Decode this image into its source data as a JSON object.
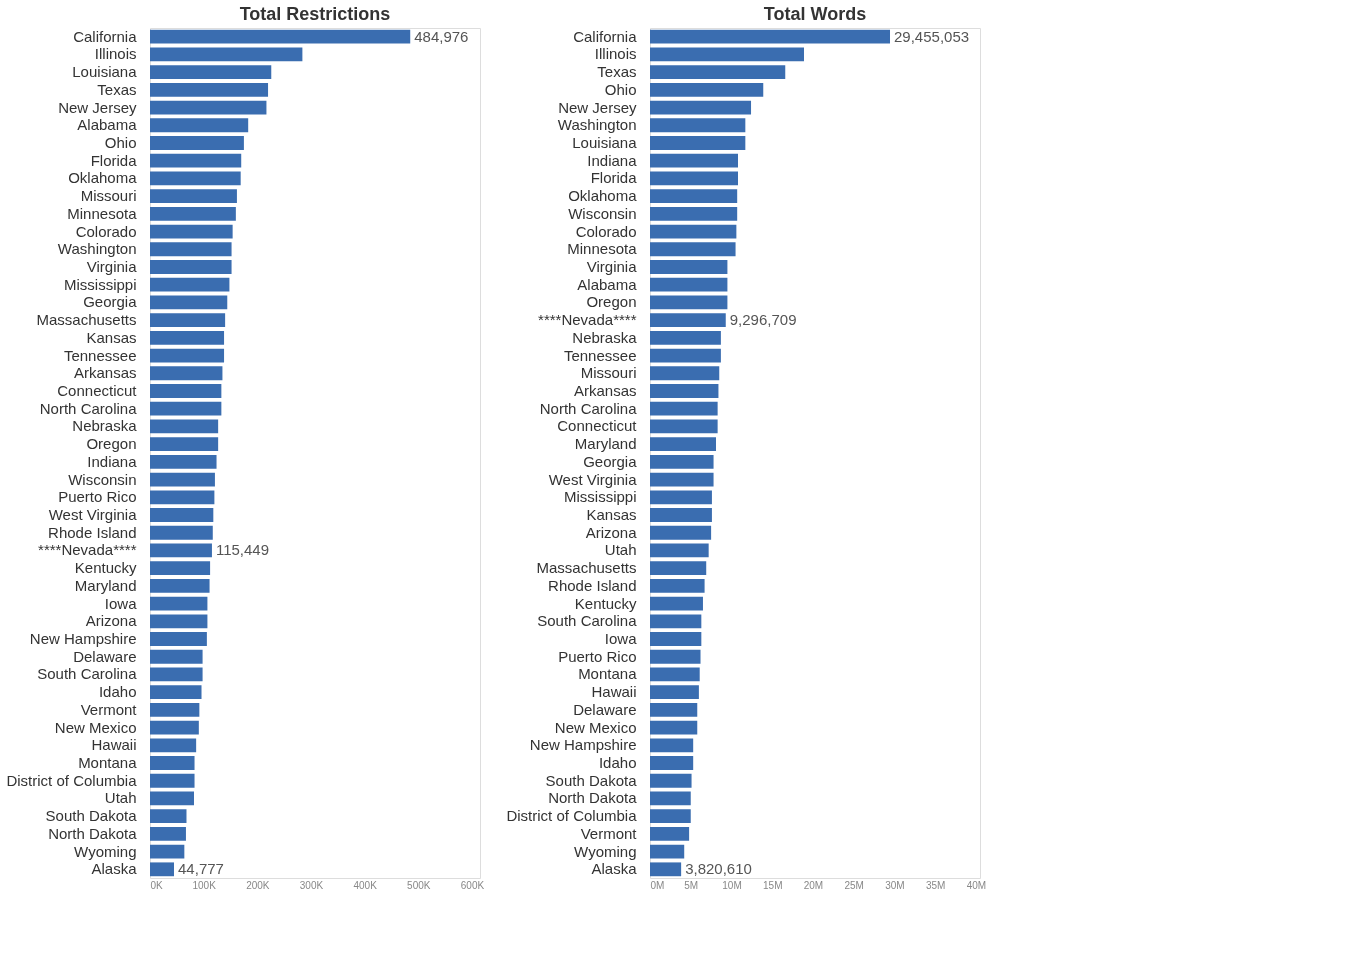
{
  "chart_data": [
    {
      "type": "bar",
      "orientation": "horizontal",
      "title": "Total Restrictions",
      "grid": false,
      "categories": [
        "California",
        "Illinois",
        "Louisiana",
        "Texas",
        "New Jersey",
        "Alabama",
        "Ohio",
        "Florida",
        "Oklahoma",
        "Missouri",
        "Minnesota",
        "Colorado",
        "Washington",
        "Virginia",
        "Mississippi",
        "Georgia",
        "Massachusetts",
        "Kansas",
        "Tennessee",
        "Arkansas",
        "Connecticut",
        "North Carolina",
        "Nebraska",
        "Oregon",
        "Indiana",
        "Wisconsin",
        "Puerto Rico",
        "West Virginia",
        "Rhode Island",
        "****Nevada****",
        "Kentucky",
        "Maryland",
        "Iowa",
        "Arizona",
        "New Hampshire",
        "Delaware",
        "South Carolina",
        "Idaho",
        "Vermont",
        "New Mexico",
        "Hawaii",
        "Montana",
        "District of Columbia",
        "Utah",
        "South Dakota",
        "North Dakota",
        "Wyoming",
        "Alaska"
      ],
      "series": [
        {
          "color": "#3a6db0",
          "values": [
            484976,
            284000,
            226000,
            220000,
            217000,
            183000,
            175000,
            170000,
            169000,
            162000,
            160000,
            154000,
            152000,
            152000,
            148000,
            144000,
            140000,
            138000,
            138000,
            135000,
            133000,
            133000,
            127000,
            127000,
            124000,
            121000,
            120000,
            118000,
            117000,
            115449,
            112000,
            111000,
            107000,
            107000,
            106000,
            98000,
            98000,
            96000,
            92000,
            91000,
            86000,
            83000,
            83000,
            82000,
            68000,
            67000,
            64000,
            44777
          ],
          "value_labels": [
            "484,976",
            null,
            null,
            null,
            null,
            null,
            null,
            null,
            null,
            null,
            null,
            null,
            null,
            null,
            null,
            null,
            null,
            null,
            null,
            null,
            null,
            null,
            null,
            null,
            null,
            null,
            null,
            null,
            null,
            "115,449",
            null,
            null,
            null,
            null,
            null,
            null,
            null,
            null,
            null,
            null,
            null,
            null,
            null,
            null,
            null,
            null,
            null,
            "44,777"
          ]
        }
      ],
      "xlim": [
        0,
        615000
      ],
      "xticks": [
        {
          "value": 0,
          "label": "0K"
        },
        {
          "value": 100000,
          "label": "100K"
        },
        {
          "value": 200000,
          "label": "200K"
        },
        {
          "value": 300000,
          "label": "300K"
        },
        {
          "value": 400000,
          "label": "400K"
        },
        {
          "value": 500000,
          "label": "500K"
        },
        {
          "value": 600000,
          "label": "600K"
        }
      ]
    },
    {
      "type": "bar",
      "orientation": "horizontal",
      "title": "Total Words",
      "grid": false,
      "categories": [
        "California",
        "Illinois",
        "Texas",
        "Ohio",
        "New Jersey",
        "Washington",
        "Louisiana",
        "Indiana",
        "Florida",
        "Oklahoma",
        "Wisconsin",
        "Colorado",
        "Minnesota",
        "Virginia",
        "Alabama",
        "Oregon",
        "****Nevada****",
        "Nebraska",
        "Tennessee",
        "Missouri",
        "Arkansas",
        "North Carolina",
        "Connecticut",
        "Maryland",
        "Georgia",
        "West Virginia",
        "Mississippi",
        "Kansas",
        "Arizona",
        "Utah",
        "Massachusetts",
        "Rhode Island",
        "Kentucky",
        "South Carolina",
        "Iowa",
        "Puerto Rico",
        "Montana",
        "Hawaii",
        "Delaware",
        "New Mexico",
        "New Hampshire",
        "Idaho",
        "South Dakota",
        "North Dakota",
        "District of Columbia",
        "Vermont",
        "Wyoming",
        "Alaska"
      ],
      "series": [
        {
          "color": "#3a6db0",
          "values": [
            29455053,
            18900000,
            16600000,
            13900000,
            12400000,
            11700000,
            11700000,
            10800000,
            10800000,
            10700000,
            10700000,
            10600000,
            10500000,
            9500000,
            9500000,
            9500000,
            9296709,
            8700000,
            8700000,
            8500000,
            8400000,
            8300000,
            8300000,
            8100000,
            7800000,
            7800000,
            7600000,
            7600000,
            7500000,
            7200000,
            6900000,
            6700000,
            6500000,
            6300000,
            6300000,
            6200000,
            6100000,
            6000000,
            5800000,
            5800000,
            5300000,
            5300000,
            5100000,
            5000000,
            5000000,
            4800000,
            4200000,
            3820610
          ],
          "value_labels": [
            "29,455,053",
            null,
            null,
            null,
            null,
            null,
            null,
            null,
            null,
            null,
            null,
            null,
            null,
            null,
            null,
            null,
            "9,296,709",
            null,
            null,
            null,
            null,
            null,
            null,
            null,
            null,
            null,
            null,
            null,
            null,
            null,
            null,
            null,
            null,
            null,
            null,
            null,
            null,
            null,
            null,
            null,
            null,
            null,
            null,
            null,
            null,
            null,
            null,
            "3,820,610"
          ]
        }
      ],
      "xlim": [
        0,
        40500000
      ],
      "xticks": [
        {
          "value": 0,
          "label": "0M"
        },
        {
          "value": 5000000,
          "label": "5M"
        },
        {
          "value": 10000000,
          "label": "10M"
        },
        {
          "value": 15000000,
          "label": "15M"
        },
        {
          "value": 20000000,
          "label": "20M"
        },
        {
          "value": 25000000,
          "label": "25M"
        },
        {
          "value": 30000000,
          "label": "30M"
        },
        {
          "value": 35000000,
          "label": "35M"
        },
        {
          "value": 40000000,
          "label": "40M"
        }
      ]
    }
  ]
}
